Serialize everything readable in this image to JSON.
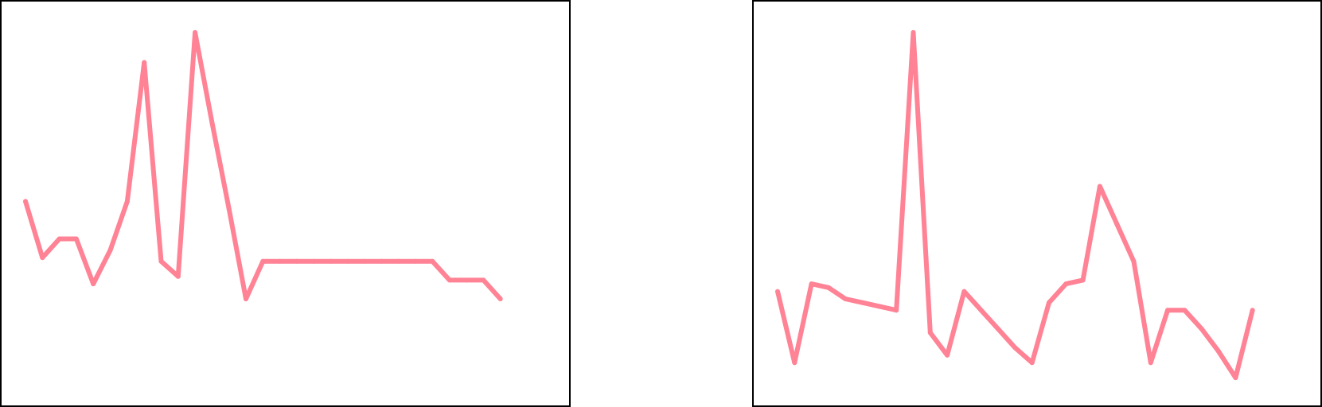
{
  "colors": {
    "line": "#ff8295",
    "frame": "#000000",
    "background": "#ffffff"
  },
  "chart_data": [
    {
      "type": "line",
      "title": "",
      "xlabel": "",
      "ylabel": "",
      "xlim": [
        0,
        29
      ],
      "ylim": [
        0,
        100
      ],
      "grid": false,
      "legend": "none",
      "series": [
        {
          "x": [
            0,
            1,
            2,
            3,
            4,
            5,
            6,
            7,
            8,
            9,
            10,
            11,
            12,
            13,
            14,
            15,
            16,
            17,
            18,
            19,
            20,
            21,
            22,
            23,
            24,
            25,
            26,
            27,
            28
          ],
          "values": [
            51,
            36,
            41,
            41,
            29,
            38,
            51,
            88,
            35,
            31,
            96,
            72,
            49,
            25,
            35,
            35,
            35,
            35,
            35,
            35,
            35,
            35,
            35,
            35,
            35,
            30,
            30,
            30,
            25
          ]
        }
      ]
    },
    {
      "type": "line",
      "title": "",
      "xlabel": "",
      "ylabel": "",
      "xlim": [
        0,
        29
      ],
      "ylim": [
        0,
        100
      ],
      "grid": false,
      "legend": "none",
      "series": [
        {
          "x": [
            0,
            1,
            2,
            3,
            4,
            5,
            6,
            7,
            8,
            9,
            10,
            11,
            12,
            13,
            14,
            15,
            16,
            17,
            18,
            19,
            20,
            21,
            22,
            23,
            24,
            25,
            26,
            27,
            28
          ],
          "values": [
            27,
            8,
            29,
            28,
            25,
            24,
            23,
            22,
            96,
            16,
            10,
            27,
            22,
            17,
            12,
            8,
            24,
            29,
            30,
            55,
            45,
            35,
            8,
            22,
            22,
            17,
            11,
            4,
            22
          ]
        }
      ]
    }
  ]
}
